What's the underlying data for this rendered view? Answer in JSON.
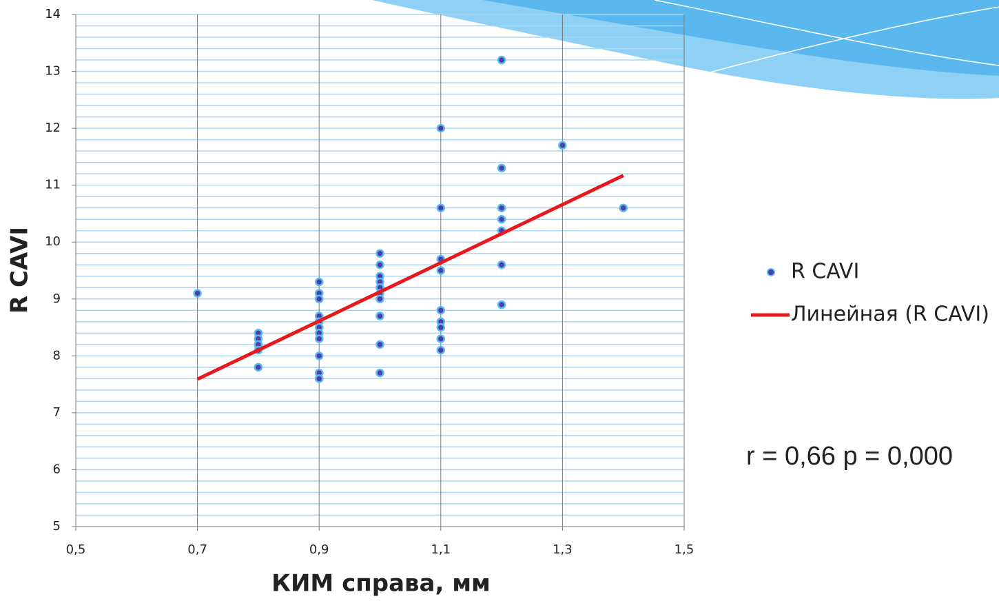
{
  "chart_data": {
    "type": "scatter",
    "x_label": "КИМ справа, мм",
    "y_label": "R CAVI",
    "annotation": "r = 0,66  p = 0,000",
    "xlim": [
      0.5,
      1.5
    ],
    "xticks": [
      {
        "value": 0.5,
        "label": "0,5"
      },
      {
        "value": 0.7,
        "label": "0,7"
      },
      {
        "value": 0.9,
        "label": "0,9"
      },
      {
        "value": 1.1,
        "label": "1,1"
      },
      {
        "value": 1.3,
        "label": "1,3"
      },
      {
        "value": 1.5,
        "label": "1,5"
      }
    ],
    "ylim": [
      5,
      14
    ],
    "yticks": [
      5,
      6,
      7,
      8,
      9,
      10,
      11,
      12,
      13,
      14
    ],
    "minor_grid_step": 0.2,
    "grid": true,
    "legend": "right",
    "series": [
      {
        "name": "R CAVI",
        "color": "#4b3fa8",
        "mode": "markers",
        "x": [
          0.7,
          0.8,
          0.8,
          0.8,
          0.8,
          0.8,
          0.9,
          0.9,
          0.9,
          0.9,
          0.9,
          0.9,
          0.9,
          0.9,
          0.9,
          0.9,
          0.9,
          1.0,
          1.0,
          1.0,
          1.0,
          1.0,
          1.0,
          1.0,
          1.0,
          1.0,
          1.0,
          1.1,
          1.1,
          1.1,
          1.1,
          1.1,
          1.1,
          1.1,
          1.1,
          1.1,
          1.2,
          1.2,
          1.2,
          1.2,
          1.2,
          1.2,
          1.2,
          1.3,
          1.4
        ],
        "values": [
          9.1,
          8.4,
          8.3,
          8.2,
          8.1,
          7.8,
          9.3,
          9.1,
          9.0,
          8.7,
          8.6,
          8.5,
          8.4,
          8.3,
          8.0,
          7.7,
          7.6,
          9.8,
          9.6,
          9.4,
          9.3,
          9.2,
          9.1,
          9.0,
          8.7,
          8.2,
          7.7,
          12.0,
          10.6,
          9.7,
          9.5,
          8.8,
          8.6,
          8.5,
          8.3,
          8.1,
          13.2,
          11.3,
          10.6,
          10.4,
          10.2,
          9.6,
          8.9,
          11.7,
          10.6
        ]
      },
      {
        "name": "Линейная (R CAVI)",
        "color": "#e8191c",
        "mode": "line",
        "x": [
          0.7,
          1.4
        ],
        "values": [
          7.59,
          11.17
        ]
      }
    ]
  }
}
